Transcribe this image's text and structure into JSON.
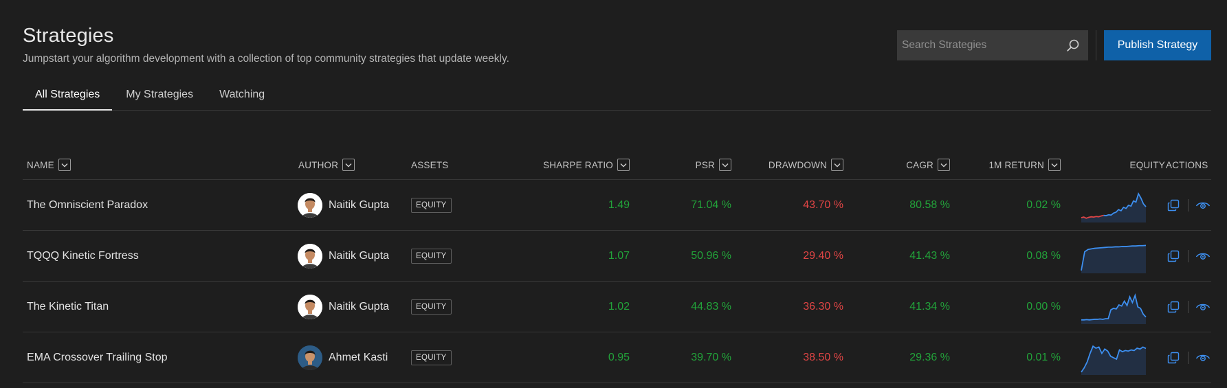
{
  "header": {
    "title": "Strategies",
    "subtitle": "Jumpstart your algorithm development with a collection of top community strategies that update weekly."
  },
  "search": {
    "placeholder": "Search Strategies",
    "value": "",
    "icon": "search-icon"
  },
  "publish_button": {
    "label": "Publish Strategy"
  },
  "tabs": [
    {
      "label": "All Strategies",
      "active": true
    },
    {
      "label": "My Strategies",
      "active": false
    },
    {
      "label": "Watching",
      "active": false
    }
  ],
  "columns": {
    "name": "NAME",
    "author": "AUTHOR",
    "assets": "ASSETS",
    "sharpe": "SHARPE RATIO",
    "psr": "PSR",
    "drawdown": "DRAWDOWN",
    "cagr": "CAGR",
    "return_1m": "1M RETURN",
    "equity": "EQUITY",
    "actions": "ACTIONS"
  },
  "colors": {
    "positive": "#22a33a",
    "negative": "#e04545",
    "accent": "#0f61a8",
    "equity_line": "#3d8ff0",
    "equity_loss_line": "#e04545"
  },
  "rows": [
    {
      "name": "The Omniscient Paradox",
      "author": "Naitik Gupta",
      "asset": "EQUITY",
      "sharpe": "1.49",
      "psr": "71.04 %",
      "drawdown": "43.70 %",
      "cagr": "80.58 %",
      "return_1m": "0.02 %",
      "equity_curve": [
        0.12,
        0.14,
        0.1,
        0.13,
        0.15,
        0.14,
        0.16,
        0.15,
        0.18,
        0.2,
        0.19,
        0.22,
        0.21,
        0.28,
        0.31,
        0.4,
        0.36,
        0.48,
        0.44,
        0.55,
        0.52,
        0.7,
        0.66,
        0.95,
        0.8,
        0.6,
        0.5
      ],
      "equity_loss_until": 0.35
    },
    {
      "name": "TQQQ Kinetic Fortress",
      "author": "Naitik Gupta",
      "asset": "EQUITY",
      "sharpe": "1.07",
      "psr": "50.96 %",
      "drawdown": "29.40 %",
      "cagr": "41.43 %",
      "return_1m": "0.08 %",
      "equity_curve": [
        0.05,
        0.7,
        0.78,
        0.8,
        0.82,
        0.83,
        0.84,
        0.85,
        0.86,
        0.86,
        0.87,
        0.87,
        0.88,
        0.88,
        0.89,
        0.9,
        0.9,
        0.91,
        0.91,
        0.92
      ],
      "equity_loss_until": 0
    },
    {
      "name": "The Kinetic Titan",
      "author": "Naitik Gupta",
      "asset": "EQUITY",
      "sharpe": "1.02",
      "psr": "44.83 %",
      "drawdown": "36.30 %",
      "cagr": "41.34 %",
      "return_1m": "0.00 %",
      "equity_curve": [
        0.1,
        0.1,
        0.11,
        0.1,
        0.11,
        0.12,
        0.12,
        0.13,
        0.12,
        0.14,
        0.14,
        0.45,
        0.5,
        0.48,
        0.62,
        0.58,
        0.75,
        0.6,
        0.9,
        0.7,
        0.95,
        0.55,
        0.5,
        0.3,
        0.2
      ],
      "equity_loss_until": 0
    },
    {
      "name": "EMA Crossover Trailing Stop",
      "author": "Ahmet Kasti",
      "asset": "EQUITY",
      "sharpe": "0.95",
      "psr": "39.70 %",
      "drawdown": "38.50 %",
      "cagr": "29.36 %",
      "return_1m": "0.01 %",
      "equity_curve": [
        0.05,
        0.2,
        0.4,
        0.7,
        0.95,
        0.88,
        0.92,
        0.7,
        0.85,
        0.78,
        0.6,
        0.55,
        0.5,
        0.82,
        0.76,
        0.8,
        0.78,
        0.82,
        0.8,
        0.88,
        0.85,
        0.92,
        0.87
      ],
      "equity_loss_until": 0
    }
  ],
  "icons": {
    "duplicate": "copy-icon",
    "watch": "eye-icon",
    "sort": "chevron-down-icon"
  }
}
